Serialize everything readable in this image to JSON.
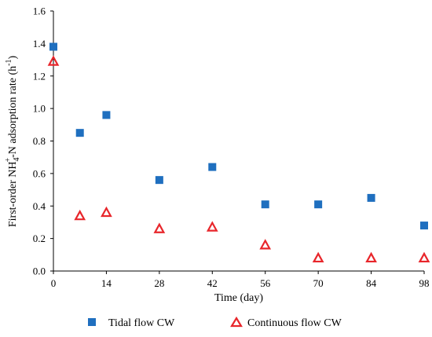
{
  "chart_data": {
    "type": "scatter",
    "title": "",
    "xlabel": "Time (day)",
    "ylabel": {
      "prefix": "First-order NH",
      "sub": "4",
      "sup": "+",
      "mid": "-N adsorption rate (h",
      "sup2": "-1",
      "suffix": ")"
    },
    "xlim": [
      0,
      98
    ],
    "ylim": [
      0,
      1.6
    ],
    "x_ticks": [
      0,
      14,
      28,
      42,
      56,
      70,
      84,
      98
    ],
    "y_ticks": [
      0.0,
      0.2,
      0.4,
      0.6,
      0.8,
      1.0,
      1.2,
      1.4,
      1.6
    ],
    "y_tick_labels": [
      "0.0",
      "0.2",
      "0.4",
      "0.6",
      "0.8",
      "1.0",
      "1.2",
      "1.4",
      "1.6"
    ],
    "grid": false,
    "legend_position": "bottom",
    "series": [
      {
        "name": "Tidal flow CW",
        "marker": "square",
        "color": "#1f6fbf",
        "points": [
          {
            "x": 0,
            "y": 1.38
          },
          {
            "x": 7,
            "y": 0.85
          },
          {
            "x": 14,
            "y": 0.96
          },
          {
            "x": 28,
            "y": 0.56
          },
          {
            "x": 42,
            "y": 0.64
          },
          {
            "x": 56,
            "y": 0.41
          },
          {
            "x": 70,
            "y": 0.41
          },
          {
            "x": 84,
            "y": 0.45
          },
          {
            "x": 98,
            "y": 0.28
          }
        ]
      },
      {
        "name": "Continuous flow CW",
        "marker": "triangle-open",
        "color": "#e8262b",
        "points": [
          {
            "x": 0,
            "y": 1.29
          },
          {
            "x": 7,
            "y": 0.34
          },
          {
            "x": 14,
            "y": 0.36
          },
          {
            "x": 28,
            "y": 0.26
          },
          {
            "x": 42,
            "y": 0.27
          },
          {
            "x": 56,
            "y": 0.16
          },
          {
            "x": 70,
            "y": 0.08
          },
          {
            "x": 84,
            "y": 0.08
          },
          {
            "x": 98,
            "y": 0.08
          }
        ]
      }
    ]
  }
}
